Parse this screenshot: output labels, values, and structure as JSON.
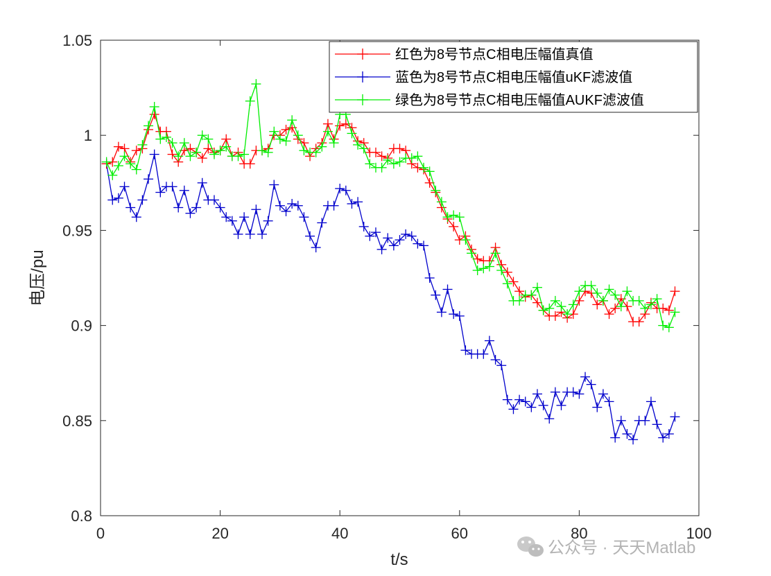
{
  "watermark": {
    "text": "公众号 · 天天Matlab",
    "icon": "wechat-icon"
  },
  "chart_data": {
    "type": "line",
    "xlabel": "t/s",
    "ylabel": "电压/pu",
    "xlim": [
      0,
      100
    ],
    "ylim": [
      0.8,
      1.05
    ],
    "xticks": [
      "0",
      "20",
      "40",
      "60",
      "80",
      "100"
    ],
    "yticks": [
      "0.8",
      "0.85",
      "0.9",
      "0.95",
      "1",
      "1.05"
    ],
    "grid": false,
    "legend_position": "top-right",
    "marker": "plus",
    "x": [
      1,
      2,
      3,
      4,
      5,
      6,
      7,
      8,
      9,
      10,
      11,
      12,
      13,
      14,
      15,
      16,
      17,
      18,
      19,
      20,
      21,
      22,
      23,
      24,
      25,
      26,
      27,
      28,
      29,
      30,
      31,
      32,
      33,
      34,
      35,
      36,
      37,
      38,
      39,
      40,
      41,
      42,
      43,
      44,
      45,
      46,
      47,
      48,
      49,
      50,
      51,
      52,
      53,
      54,
      55,
      56,
      57,
      58,
      59,
      60,
      61,
      62,
      63,
      64,
      65,
      66,
      67,
      68,
      69,
      70,
      71,
      72,
      73,
      74,
      75,
      76,
      77,
      78,
      79,
      80,
      81,
      82,
      83,
      84,
      85,
      86,
      87,
      88,
      89,
      90,
      91,
      92,
      93,
      94,
      95,
      96
    ],
    "series": [
      {
        "name": "红色为8号节点C相电压幅值真值",
        "color": "#ff0000",
        "values": [
          0.985,
          0.986,
          0.994,
          0.993,
          0.986,
          0.992,
          0.993,
          1.003,
          1.011,
          1.002,
          1.002,
          0.99,
          0.986,
          0.992,
          0.993,
          0.991,
          0.988,
          0.993,
          0.991,
          0.992,
          0.998,
          0.989,
          0.991,
          0.985,
          0.985,
          0.992,
          0.992,
          0.993,
          1.0,
          1.0,
          1.003,
          1.004,
          0.998,
          0.996,
          0.989,
          0.993,
          0.996,
          1.006,
          0.998,
          1.005,
          1.006,
          1.004,
          0.997,
          0.996,
          0.991,
          0.991,
          0.989,
          0.988,
          0.993,
          0.993,
          0.992,
          0.985,
          0.983,
          0.982,
          0.975,
          0.97,
          0.962,
          0.956,
          0.952,
          0.945,
          0.947,
          0.94,
          0.935,
          0.934,
          0.934,
          0.941,
          0.932,
          0.928,
          0.923,
          0.918,
          0.915,
          0.916,
          0.912,
          0.908,
          0.905,
          0.905,
          0.907,
          0.904,
          0.906,
          0.913,
          0.918,
          0.917,
          0.911,
          0.913,
          0.906,
          0.909,
          0.914,
          0.91,
          0.902,
          0.902,
          0.906,
          0.912,
          0.909,
          0.909,
          0.908,
          0.918
        ]
      },
      {
        "name": "蓝色为8号节点C相电压幅值uKF滤波值",
        "color": "#0000cc",
        "values": [
          0.985,
          0.966,
          0.967,
          0.973,
          0.962,
          0.957,
          0.966,
          0.977,
          0.99,
          0.97,
          0.973,
          0.973,
          0.962,
          0.971,
          0.959,
          0.962,
          0.975,
          0.966,
          0.966,
          0.962,
          0.957,
          0.955,
          0.948,
          0.957,
          0.948,
          0.961,
          0.948,
          0.955,
          0.974,
          0.963,
          0.96,
          0.964,
          0.963,
          0.957,
          0.947,
          0.941,
          0.954,
          0.963,
          0.963,
          0.972,
          0.971,
          0.964,
          0.965,
          0.952,
          0.947,
          0.949,
          0.94,
          0.946,
          0.942,
          0.945,
          0.948,
          0.947,
          0.943,
          0.942,
          0.925,
          0.916,
          0.907,
          0.919,
          0.906,
          0.905,
          0.887,
          0.885,
          0.885,
          0.885,
          0.892,
          0.882,
          0.879,
          0.861,
          0.856,
          0.861,
          0.86,
          0.857,
          0.864,
          0.858,
          0.851,
          0.865,
          0.858,
          0.865,
          0.865,
          0.864,
          0.873,
          0.869,
          0.857,
          0.864,
          0.86,
          0.841,
          0.85,
          0.843,
          0.84,
          0.85,
          0.85,
          0.86,
          0.848,
          0.841,
          0.843,
          0.852
        ]
      },
      {
        "name": "绿色为8号节点C相电压幅值AUKF滤波值",
        "color": "#00ee00",
        "values": [
          0.986,
          0.979,
          0.984,
          0.989,
          0.985,
          0.982,
          0.995,
          1.005,
          1.015,
          0.998,
          0.999,
          0.996,
          0.989,
          0.996,
          0.989,
          0.991,
          1.0,
          0.998,
          0.99,
          0.992,
          0.994,
          0.989,
          0.989,
          0.99,
          1.018,
          1.027,
          0.992,
          0.991,
          1.002,
          0.998,
          0.997,
          1.008,
          1.0,
          0.992,
          0.991,
          0.991,
          0.994,
          1.002,
          0.996,
          1.011,
          1.011,
          1.001,
          0.995,
          0.993,
          0.985,
          0.983,
          0.983,
          0.987,
          0.985,
          0.986,
          0.988,
          0.988,
          0.989,
          0.983,
          0.981,
          0.971,
          0.965,
          0.957,
          0.958,
          0.957,
          0.945,
          0.938,
          0.929,
          0.93,
          0.931,
          0.938,
          0.929,
          0.922,
          0.913,
          0.913,
          0.916,
          0.916,
          0.92,
          0.908,
          0.909,
          0.913,
          0.91,
          0.906,
          0.911,
          0.918,
          0.921,
          0.921,
          0.917,
          0.913,
          0.919,
          0.916,
          0.91,
          0.918,
          0.913,
          0.913,
          0.909,
          0.911,
          0.914,
          0.9,
          0.899,
          0.907
        ]
      }
    ]
  }
}
